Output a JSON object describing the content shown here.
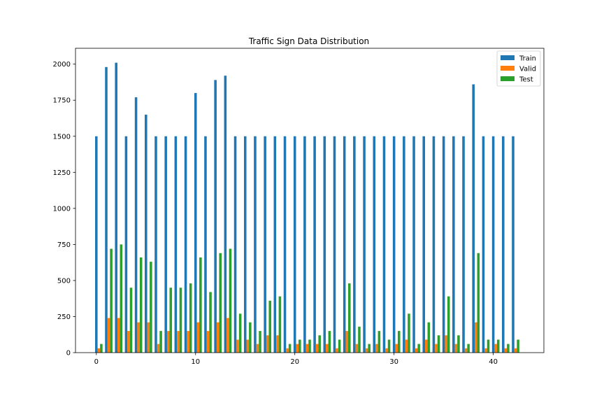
{
  "chart_data": {
    "type": "bar",
    "title": "Traffic Sign Data Distribution",
    "xlabel": "",
    "ylabel": "",
    "x": [
      0,
      1,
      2,
      3,
      4,
      5,
      6,
      7,
      8,
      9,
      10,
      11,
      12,
      13,
      14,
      15,
      16,
      17,
      18,
      19,
      20,
      21,
      22,
      23,
      24,
      25,
      26,
      27,
      28,
      29,
      30,
      31,
      32,
      33,
      34,
      35,
      36,
      37,
      38,
      39,
      40,
      41,
      42
    ],
    "xlim": [
      -2.1,
      45.1
    ],
    "ylim": [
      0,
      2110
    ],
    "xticks": [
      0,
      10,
      20,
      30,
      40
    ],
    "yticks": [
      0,
      250,
      500,
      750,
      1000,
      1250,
      1500,
      1750,
      2000
    ],
    "grid": false,
    "legend_position": "top-right",
    "series": [
      {
        "name": "Train",
        "color": "#1f77b4",
        "values": [
          1500,
          1980,
          2010,
          1500,
          1770,
          1650,
          1500,
          1500,
          1500,
          1500,
          1800,
          1500,
          1890,
          1920,
          1500,
          1500,
          1500,
          1500,
          1500,
          1500,
          1500,
          1500,
          1500,
          1500,
          1500,
          1500,
          1500,
          1500,
          1500,
          1500,
          1500,
          1500,
          1500,
          1500,
          1500,
          1500,
          1500,
          1500,
          1860,
          1500,
          1500,
          1500,
          1500
        ]
      },
      {
        "name": "Valid",
        "color": "#ff7f0e",
        "values": [
          30,
          240,
          240,
          150,
          210,
          210,
          60,
          150,
          150,
          150,
          210,
          150,
          210,
          240,
          90,
          90,
          60,
          120,
          120,
          30,
          60,
          60,
          60,
          60,
          30,
          150,
          60,
          30,
          60,
          30,
          60,
          90,
          30,
          90,
          60,
          120,
          60,
          30,
          210,
          30,
          60,
          30,
          30
        ]
      },
      {
        "name": "Test",
        "color": "#2ca02c",
        "values": [
          60,
          720,
          750,
          450,
          660,
          630,
          150,
          450,
          450,
          480,
          660,
          420,
          690,
          720,
          270,
          210,
          150,
          360,
          390,
          60,
          90,
          90,
          120,
          150,
          90,
          480,
          180,
          60,
          150,
          90,
          150,
          270,
          60,
          210,
          120,
          390,
          120,
          60,
          690,
          90,
          90,
          60,
          90
        ]
      }
    ]
  }
}
